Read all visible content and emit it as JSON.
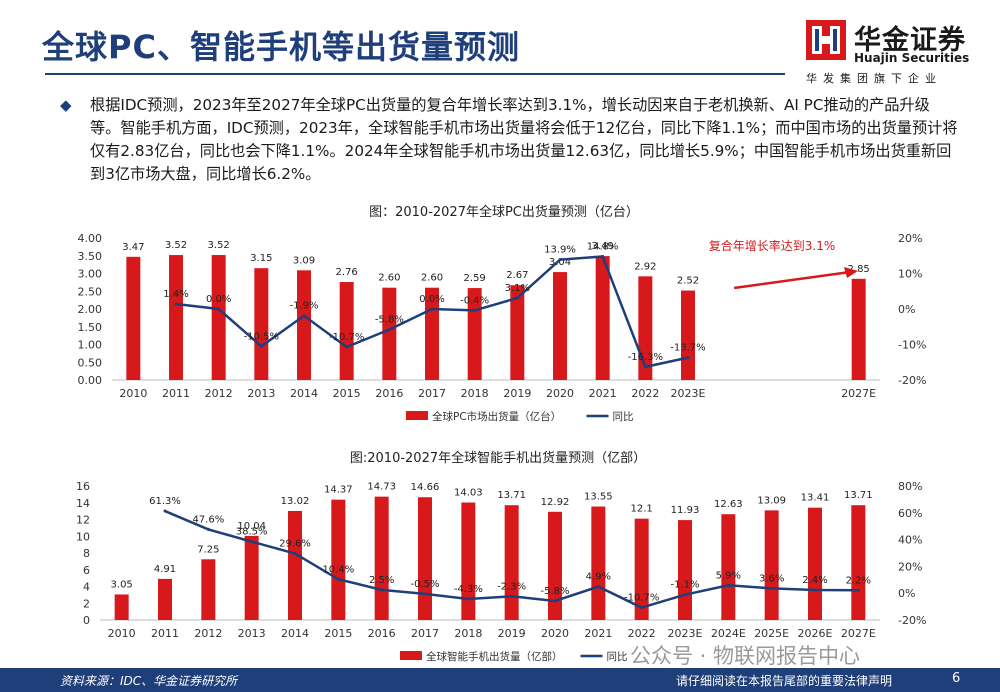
{
  "page": {
    "title": "全球PC、智能手机等出货量预测",
    "logo_cn": "华金证券",
    "logo_en": "Huajin Securities",
    "logo_sub": "华发集团旗下企业",
    "bullet_icon": "diamond-bullet-icon",
    "paragraph": "根据IDC预测，2023年至2027年全球PC出货量的复合年增长率达到3.1%，增长动因来自于老机换新、AI PC推动的产品升级等。智能手机方面，IDC预测，2023年，全球智能手机市场出货量将会低于12亿台，同比下降1.1%；而中国市场的出货量预计将仅有2.83亿台，同比也会下降1.1%。2024年全球智能手机市场出货量12.63亿，同比增长5.9%；中国智能手机市场出货重新回到3亿市场大盘，同比增长6.2%。",
    "footer_source": "资料来源：IDC、华金证券研究所",
    "footer_notice": "请仔细阅读在本报告尾部的重要法律声明",
    "page_number": "6",
    "watermark": "公众号 · 物联网报告中心",
    "colors": {
      "brand": "#1f3f7a",
      "bar": "#d7191c",
      "line": "#1f3f7a",
      "logo_red": "#d7191c"
    }
  },
  "chart_data": [
    {
      "type": "bar",
      "title": "图：2010-2027年全球PC出货量预测（亿台）",
      "categories": [
        "2010",
        "2011",
        "2012",
        "2013",
        "2014",
        "2015",
        "2016",
        "2017",
        "2018",
        "2019",
        "2020",
        "2021",
        "2022",
        "2023E",
        "",
        "",
        "",
        "2027E"
      ],
      "bar_labels": [
        "3.47",
        "3.52",
        "3.52",
        "3.15",
        "3.09",
        "2.76",
        "2.60",
        "2.60",
        "2.59",
        "2.67",
        "3.04",
        "3.49",
        "2.92",
        "2.52",
        "",
        "",
        "",
        "2.85"
      ],
      "line_labels": [
        "",
        "1.4%",
        "0.0%",
        "-10.5%",
        "-1.9%",
        "-10.7%",
        "-5.8%",
        "0.0%",
        "-0.4%",
        "3.1%",
        "13.9%",
        "14.8%",
        "-16.3%",
        "-13.7%",
        "",
        "",
        "",
        ""
      ],
      "series": [
        {
          "name": "全球PC市场出货量（亿台）",
          "values": [
            3.47,
            3.52,
            3.52,
            3.15,
            3.09,
            2.76,
            2.6,
            2.6,
            2.59,
            2.67,
            3.04,
            3.49,
            2.92,
            2.52,
            null,
            null,
            null,
            2.85
          ]
        },
        {
          "name": "同比",
          "values": [
            null,
            1.4,
            0.0,
            -10.5,
            -1.9,
            -10.7,
            -5.8,
            0.0,
            -0.4,
            3.1,
            13.9,
            14.8,
            -16.3,
            -13.7,
            null,
            null,
            null,
            null
          ]
        }
      ],
      "y_ticks": [
        "4.00",
        "3.50",
        "3.00",
        "2.50",
        "2.00",
        "1.50",
        "1.00",
        "0.50",
        "0.00"
      ],
      "y2_ticks": [
        "20%",
        "10%",
        "0%",
        "-10%",
        "-20%"
      ],
      "ylim": [
        0,
        4
      ],
      "y2lim": [
        -20,
        20
      ],
      "annotation": "复合年增长率达到3.1%",
      "legend": "bottom"
    },
    {
      "type": "bar",
      "title": "图:2010-2027年全球智能手机出货量预测（亿部）",
      "categories": [
        "2010",
        "2011",
        "2012",
        "2013",
        "2014",
        "2015",
        "2016",
        "2017",
        "2018",
        "2019",
        "2020",
        "2021",
        "2022",
        "2023E",
        "2024E",
        "2025E",
        "2026E",
        "2027E"
      ],
      "bar_labels": [
        "3.05",
        "4.91",
        "7.25",
        "10.04",
        "13.02",
        "14.37",
        "14.73",
        "14.66",
        "14.03",
        "13.71",
        "12.92",
        "13.55",
        "12.1",
        "11.93",
        "12.63",
        "13.09",
        "13.41",
        "13.71"
      ],
      "line_labels": [
        "",
        "61.3%",
        "47.6%",
        "38.5%",
        "29.6%",
        "10.4%",
        "2.5%",
        "-0.5%",
        "-4.3%",
        "-2.3%",
        "-5.8%",
        "4.9%",
        "-10.7%",
        "-1.1%",
        "5.9%",
        "3.6%",
        "2.4%",
        "2.2%"
      ],
      "series": [
        {
          "name": "全球智能手机出货量（亿部）",
          "values": [
            3.05,
            4.91,
            7.25,
            10.04,
            13.02,
            14.37,
            14.73,
            14.66,
            14.03,
            13.71,
            12.92,
            13.55,
            12.1,
            11.93,
            12.63,
            13.09,
            13.41,
            13.71
          ]
        },
        {
          "name": "同比",
          "values": [
            null,
            61.3,
            47.6,
            38.5,
            29.6,
            10.4,
            2.5,
            -0.5,
            -4.3,
            -2.3,
            -5.8,
            4.9,
            -10.7,
            -1.1,
            5.9,
            3.6,
            2.4,
            2.2
          ]
        }
      ],
      "y_ticks": [
        "16",
        "14",
        "12",
        "10",
        "8",
        "6",
        "4",
        "2",
        "0"
      ],
      "y2_ticks": [
        "80%",
        "60%",
        "40%",
        "20%",
        "0%",
        "-20%"
      ],
      "ylim": [
        0,
        16
      ],
      "y2lim": [
        -20,
        80
      ],
      "legend": "bottom"
    }
  ]
}
